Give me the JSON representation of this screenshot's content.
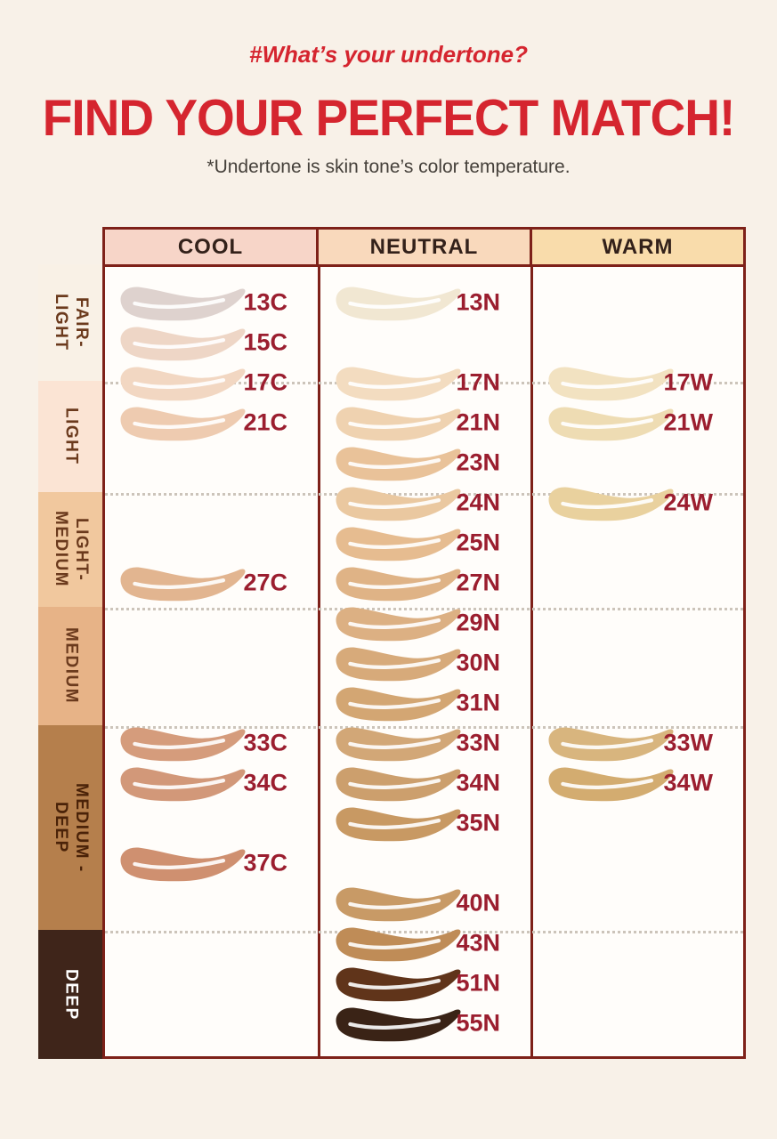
{
  "page": {
    "background": "#f8f1e8"
  },
  "header": {
    "hashtag": "#What’s your undertone?",
    "title": "FIND YOUR PERFECT MATCH!",
    "subtitle": "*Undertone is skin tone’s color temperature.",
    "accent_red": "#d5252f",
    "subtitle_color": "#45403a"
  },
  "table": {
    "border_color": "#7e2119",
    "shade_code_color": "#9b1e2f",
    "dotted_line_color": "#ccc4ba",
    "levels": [
      13,
      15,
      17,
      21,
      23,
      24,
      25,
      27,
      29,
      30,
      31,
      33,
      34,
      35,
      37,
      40,
      43,
      51,
      55
    ],
    "columns": [
      {
        "id": "cool",
        "header": "COOL",
        "header_bg": "#f7d5c8",
        "shades": [
          {
            "code": "13C",
            "color": "#ded2ce"
          },
          {
            "code": "15C",
            "color": "#eed6c6"
          },
          {
            "code": "17C",
            "color": "#f2d7c2"
          },
          {
            "code": "21C",
            "color": "#eecbb0"
          },
          {
            "code": "27C",
            "color": "#e2b590"
          },
          {
            "code": "33C",
            "color": "#d59c7c"
          },
          {
            "code": "34C",
            "color": "#d29879"
          },
          {
            "code": "37C",
            "color": "#cf9070"
          }
        ]
      },
      {
        "id": "neutral",
        "header": "NEUTRAL",
        "header_bg": "#f9d9bc",
        "shades": [
          {
            "code": "13N",
            "color": "#f1e7d2"
          },
          {
            "code": "17N",
            "color": "#f3dcc0"
          },
          {
            "code": "21N",
            "color": "#efd2b0"
          },
          {
            "code": "23N",
            "color": "#e9c299"
          },
          {
            "code": "24N",
            "color": "#eac8a0"
          },
          {
            "code": "25N",
            "color": "#e6bc90"
          },
          {
            "code": "27N",
            "color": "#dfb386"
          },
          {
            "code": "29N",
            "color": "#dcb083"
          },
          {
            "code": "30N",
            "color": "#d7aa7a"
          },
          {
            "code": "31N",
            "color": "#d3a673"
          },
          {
            "code": "33N",
            "color": "#d2a777"
          },
          {
            "code": "34N",
            "color": "#cc9f6d"
          },
          {
            "code": "35N",
            "color": "#c89963"
          },
          {
            "code": "40N",
            "color": "#c89a66"
          },
          {
            "code": "43N",
            "color": "#bf8c57"
          },
          {
            "code": "51N",
            "color": "#60341a"
          },
          {
            "code": "55N",
            "color": "#3a2316"
          }
        ]
      },
      {
        "id": "warm",
        "header": "WARM",
        "header_bg": "#f9dcab",
        "shades": [
          {
            "code": "17W",
            "color": "#f2e2c1"
          },
          {
            "code": "21W",
            "color": "#eedcb3"
          },
          {
            "code": "24W",
            "color": "#e9d19e"
          },
          {
            "code": "33W",
            "color": "#d8b57e"
          },
          {
            "code": "34W",
            "color": "#d3ac70"
          }
        ]
      }
    ],
    "depth_scale": [
      {
        "label": "FAIR-\nLIGHT",
        "bg": "#f9f1e6",
        "text_color": "#6b3a1d"
      },
      {
        "label": "LIGHT",
        "bg": "#fbe4d4",
        "text_color": "#6b3a1d"
      },
      {
        "label": "LIGHT-\nMEDIUM",
        "bg": "#f1c89e",
        "text_color": "#6b3a1d"
      },
      {
        "label": "MEDIUM",
        "bg": "#e7b387",
        "text_color": "#6b3a1d"
      },
      {
        "label": "MEDIUM -\nDEEP",
        "bg": "#b57f4c",
        "text_color": "#4a2208"
      },
      {
        "label": "DEEP",
        "bg": "#3f251a",
        "text_color": "#ffffff"
      }
    ]
  },
  "chart_data": {
    "type": "table",
    "title": "FIND YOUR PERFECT MATCH!",
    "subtitle": "*Undertone is skin tone’s color temperature.",
    "columns": [
      "COOL",
      "NEUTRAL",
      "WARM"
    ],
    "depth_rows": [
      "FAIR-LIGHT",
      "LIGHT",
      "LIGHT-MEDIUM",
      "MEDIUM",
      "MEDIUM - DEEP",
      "DEEP"
    ],
    "cells": [
      {
        "depth": "FAIR-LIGHT",
        "COOL": [
          "13C",
          "15C"
        ],
        "NEUTRAL": [
          "13N"
        ],
        "WARM": []
      },
      {
        "depth": "FAIR-LIGHT/LIGHT boundary",
        "COOL": [
          "17C"
        ],
        "NEUTRAL": [
          "17N"
        ],
        "WARM": [
          "17W"
        ]
      },
      {
        "depth": "LIGHT",
        "COOL": [
          "21C"
        ],
        "NEUTRAL": [
          "21N",
          "23N"
        ],
        "WARM": [
          "21W"
        ]
      },
      {
        "depth": "LIGHT/LIGHT-MEDIUM boundary",
        "COOL": [],
        "NEUTRAL": [
          "24N"
        ],
        "WARM": [
          "24W"
        ]
      },
      {
        "depth": "LIGHT-MEDIUM",
        "COOL": [
          "27C"
        ],
        "NEUTRAL": [
          "25N",
          "27N"
        ],
        "WARM": []
      },
      {
        "depth": "MEDIUM",
        "COOL": [],
        "NEUTRAL": [
          "29N",
          "30N",
          "31N"
        ],
        "WARM": []
      },
      {
        "depth": "MEDIUM - DEEP",
        "COOL": [
          "33C",
          "34C",
          "37C"
        ],
        "NEUTRAL": [
          "33N",
          "34N",
          "35N",
          "40N"
        ],
        "WARM": [
          "33W",
          "34W"
        ]
      },
      {
        "depth": "MEDIUM - DEEP/DEEP boundary",
        "COOL": [],
        "NEUTRAL": [
          "43N"
        ],
        "WARM": []
      },
      {
        "depth": "DEEP",
        "COOL": [],
        "NEUTRAL": [
          "51N",
          "55N"
        ],
        "WARM": []
      }
    ]
  }
}
